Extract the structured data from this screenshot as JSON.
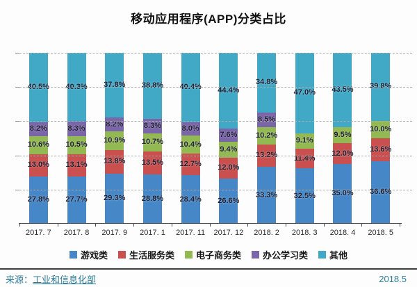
{
  "chart_data": {
    "type": "bar",
    "stacked": true,
    "title": "移动应用程序(APP)分类占比",
    "categories": [
      "2017. 7",
      "2017. 8",
      "2017. 9",
      "2017. 1",
      "2017. 11",
      "2017. 12",
      "2018. 2",
      "2018. 3",
      "2018. 4",
      "2018. 5"
    ],
    "series": [
      {
        "name": "游戏类",
        "color": "#4688C7",
        "values": [
          27.8,
          27.7,
          29.3,
          28.8,
          28.4,
          26.6,
          33.3,
          32.5,
          35.0,
          36.6
        ]
      },
      {
        "name": "生活服务类",
        "color": "#C9504E",
        "values": [
          13.0,
          13.1,
          13.8,
          13.5,
          12.7,
          12.0,
          13.2,
          11.4,
          12.0,
          13.6
        ]
      },
      {
        "name": "电子商务类",
        "color": "#93BA52",
        "values": [
          10.6,
          10.5,
          10.9,
          10.7,
          10.4,
          9.4,
          10.2,
          9.1,
          9.5,
          10.0
        ]
      },
      {
        "name": "办公学习类",
        "color": "#7A65A8",
        "values": [
          8.2,
          8.3,
          8.2,
          8.3,
          8.0,
          7.6,
          8.5,
          0,
          0,
          0
        ]
      },
      {
        "name": "其他",
        "color": "#41A9C6",
        "values": [
          40.5,
          40.3,
          37.8,
          38.8,
          40.4,
          44.4,
          34.8,
          47.0,
          43.5,
          39.8
        ]
      }
    ],
    "ylim": [
      0,
      100
    ],
    "gridlines": [
      20,
      40,
      60,
      80,
      100
    ],
    "grid_style": "dashed",
    "legend_position": "bottom",
    "value_suffix": "%"
  },
  "footer": {
    "source_prefix": "来源：",
    "source_name": "工业和信息化部",
    "date": "2018.5"
  }
}
